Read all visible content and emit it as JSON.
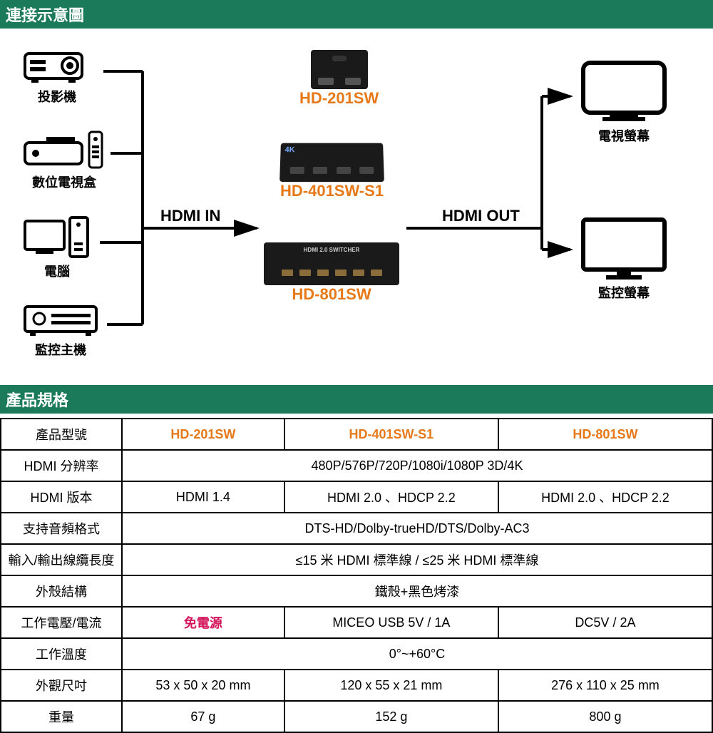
{
  "colors": {
    "header_bg": "#1b7a5a",
    "accent": "#e67817",
    "red": "#d4145a",
    "border": "#000000",
    "bg": "#ffffff"
  },
  "headers": {
    "diagram": "連接示意圖",
    "spec": "產品規格"
  },
  "diagram": {
    "inputs": [
      {
        "label": "投影機",
        "icon": "projector"
      },
      {
        "label": "數位電視盒",
        "icon": "settop"
      },
      {
        "label": "電腦",
        "icon": "pc"
      },
      {
        "label": "監控主機",
        "icon": "dvr"
      }
    ],
    "products": [
      {
        "label": "HD-201SW"
      },
      {
        "label": "HD-401SW-S1"
      },
      {
        "label": "HD-801SW"
      }
    ],
    "outputs": [
      {
        "label": "電視螢幕",
        "icon": "tv"
      },
      {
        "label": "監控螢幕",
        "icon": "monitor"
      }
    ],
    "hdmi_in": "HDMI IN",
    "hdmi_out": "HDMI OUT"
  },
  "spec": {
    "col_label": "產品型號",
    "models": [
      "HD-201SW",
      "HD-401SW-S1",
      "HD-801SW"
    ],
    "rows": [
      {
        "label": "HDMI 分辨率",
        "span": true,
        "value": "480P/576P/720P/1080i/1080P 3D/4K"
      },
      {
        "label": "HDMI 版本",
        "cells": [
          "HDMI 1.4",
          "HDMI 2.0 、HDCP 2.2",
          "HDMI 2.0 、HDCP 2.2"
        ]
      },
      {
        "label": "支持音頻格式",
        "span": true,
        "value": "DTS-HD/Dolby-trueHD/DTS/Dolby-AC3"
      },
      {
        "label": "輸入/輸出線纜長度",
        "span": true,
        "value": "≤15 米 HDMI  標準線  /  ≤25 米  HDMI  標準線"
      },
      {
        "label": "外殼結構",
        "span": true,
        "value": "鐵殼+黑色烤漆"
      },
      {
        "label": "工作電壓/電流",
        "cells": [
          "免電源",
          "MICEO USB 5V / 1A",
          "DC5V / 2A"
        ],
        "red_idx": 0
      },
      {
        "label": "工作溫度",
        "span": true,
        "value": "0°~+60°C"
      },
      {
        "label": "外觀尺吋",
        "cells": [
          "53 x 50 x 20 mm",
          "120 x 55 x 21 mm",
          "276 x 110 x 25 mm"
        ]
      },
      {
        "label": "重量",
        "cells": [
          "67 g",
          "152 g",
          "800 g"
        ]
      }
    ]
  }
}
